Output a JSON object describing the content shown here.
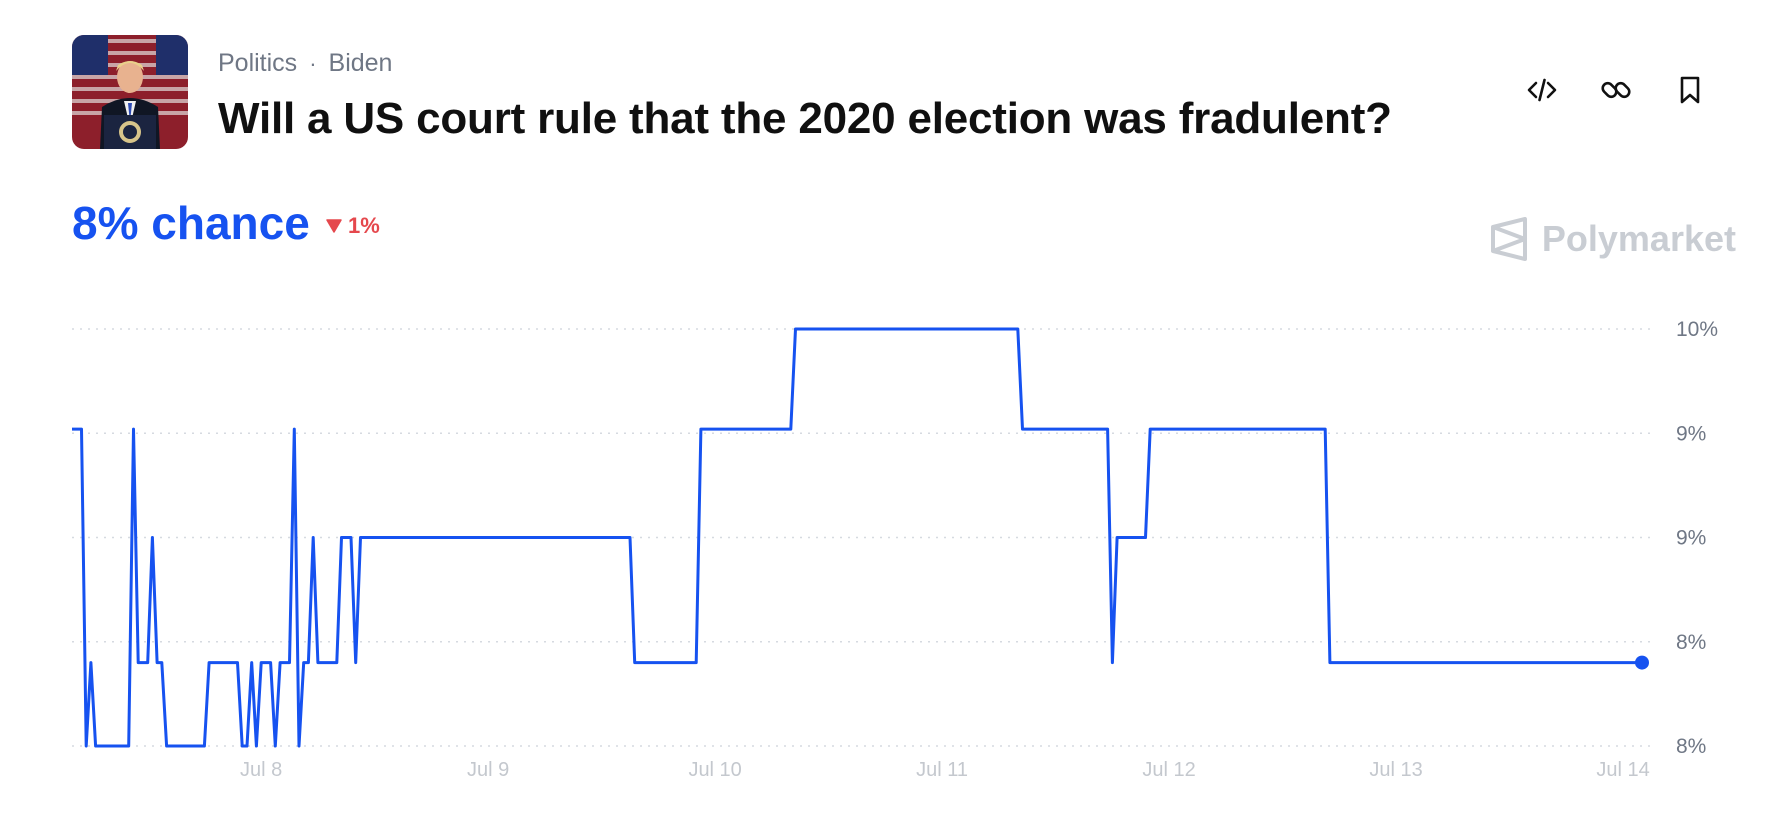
{
  "market": {
    "category": "Politics",
    "separator": "·",
    "tag": "Biden",
    "question": "Will a US court rule that the 2020 election was fradulent?"
  },
  "summary": {
    "chance_text": "8% chance",
    "change_text": "1%",
    "change_direction": "down"
  },
  "brand": {
    "name": "Polymarket"
  },
  "icons": [
    "code-embed-icon",
    "link-icon",
    "bookmark-icon",
    "polymarket-logo-icon"
  ],
  "colors": {
    "accent": "#1652f0",
    "negative": "#e5484d",
    "grid": "#d6dae0",
    "axis_text": "#6f7785",
    "xaxis_text": "#c4c8ce",
    "brand": "#c9cdd3"
  },
  "chart_data": {
    "type": "line",
    "title": "",
    "xlabel": "",
    "ylabel": "",
    "x_ticks": [
      "Jul 8",
      "Jul 9",
      "Jul 10",
      "Jul 11",
      "Jul 12",
      "Jul 13",
      "Jul 14"
    ],
    "x_start": "2024-07-07T04:00",
    "x_end": "2024-07-14T02:00",
    "y_ticks": [
      "10%",
      "9%",
      "9%",
      "8%",
      "8%"
    ],
    "ylim": [
      7.5,
      10.0
    ],
    "grid": true,
    "series": [
      {
        "values": [
          [
            "2024-07-07T04:00",
            9.4
          ],
          [
            "2024-07-07T05:00",
            9.4
          ],
          [
            "2024-07-07T05:30",
            7.5
          ],
          [
            "2024-07-07T06:00",
            8.0
          ],
          [
            "2024-07-07T06:30",
            7.5
          ],
          [
            "2024-07-07T10:00",
            7.5
          ],
          [
            "2024-07-07T10:30",
            9.4
          ],
          [
            "2024-07-07T11:00",
            8.0
          ],
          [
            "2024-07-07T12:00",
            8.0
          ],
          [
            "2024-07-07T12:30",
            8.75
          ],
          [
            "2024-07-07T13:00",
            8.0
          ],
          [
            "2024-07-07T13:30",
            8.0
          ],
          [
            "2024-07-07T14:00",
            7.5
          ],
          [
            "2024-07-07T18:00",
            7.5
          ],
          [
            "2024-07-07T18:30",
            8.0
          ],
          [
            "2024-07-07T21:30",
            8.0
          ],
          [
            "2024-07-07T22:00",
            7.5
          ],
          [
            "2024-07-07T22:30",
            7.5
          ],
          [
            "2024-07-07T23:00",
            8.0
          ],
          [
            "2024-07-07T23:30",
            7.5
          ],
          [
            "2024-07-08T00:00",
            8.0
          ],
          [
            "2024-07-08T01:00",
            8.0
          ],
          [
            "2024-07-08T01:30",
            7.5
          ],
          [
            "2024-07-08T02:00",
            8.0
          ],
          [
            "2024-07-08T03:00",
            8.0
          ],
          [
            "2024-07-08T03:30",
            9.4
          ],
          [
            "2024-07-08T04:00",
            7.5
          ],
          [
            "2024-07-08T04:30",
            8.0
          ],
          [
            "2024-07-08T05:00",
            8.0
          ],
          [
            "2024-07-08T05:30",
            8.75
          ],
          [
            "2024-07-08T06:00",
            8.0
          ],
          [
            "2024-07-08T08:00",
            8.0
          ],
          [
            "2024-07-08T08:30",
            8.75
          ],
          [
            "2024-07-08T09:30",
            8.75
          ],
          [
            "2024-07-08T10:00",
            8.0
          ],
          [
            "2024-07-08T10:30",
            8.75
          ],
          [
            "2024-07-09T15:00",
            8.75
          ],
          [
            "2024-07-09T15:30",
            8.0
          ],
          [
            "2024-07-09T22:00",
            8.0
          ],
          [
            "2024-07-09T22:30",
            9.4
          ],
          [
            "2024-07-10T08:00",
            9.4
          ],
          [
            "2024-07-10T08:30",
            10.0
          ],
          [
            "2024-07-11T08:00",
            10.0
          ],
          [
            "2024-07-11T08:30",
            9.4
          ],
          [
            "2024-07-11T17:30",
            9.4
          ],
          [
            "2024-07-11T18:00",
            8.0
          ],
          [
            "2024-07-11T18:30",
            8.75
          ],
          [
            "2024-07-11T21:30",
            8.75
          ],
          [
            "2024-07-11T22:00",
            9.4
          ],
          [
            "2024-07-12T16:30",
            9.4
          ],
          [
            "2024-07-12T17:00",
            8.0
          ],
          [
            "2024-07-14T02:00",
            8.0
          ]
        ]
      }
    ]
  }
}
